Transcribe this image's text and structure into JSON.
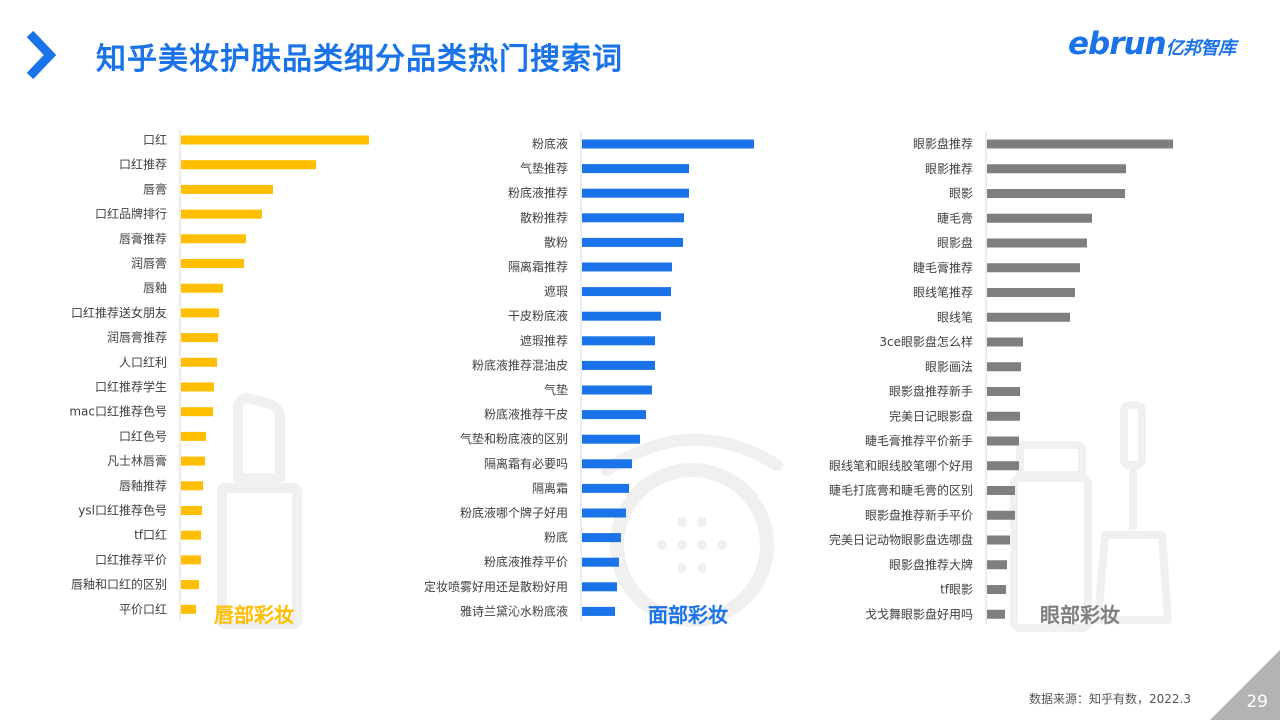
{
  "title": "知乎美妆护肤品类细分品类热门搜索词",
  "logo": {
    "main": "ebrun",
    "sub": "亿邦智库"
  },
  "source": "数据来源：知乎有数，2022.3",
  "page_number": "29",
  "colors": {
    "title": "#1a73e8",
    "lip": "#ffbe00",
    "face": "#1a73e8",
    "eye": "#7f7f7f",
    "watermark": "#f0f0f0"
  },
  "chart_data": [
    {
      "type": "bar",
      "orientation": "horizontal",
      "label": "唇部彩妆",
      "color": "#ffbe00",
      "categories": [
        "口红",
        "口红推荐",
        "唇膏",
        "口红品牌排行",
        "唇膏推荐",
        "润唇膏",
        "唇釉",
        "口红推荐送女朋友",
        "润唇膏推荐",
        "人口红利",
        "口红推荐学生",
        "mac口红推荐色号",
        "口红色号",
        "凡士林唇膏",
        "唇釉推荐",
        "ysl口红推荐色号",
        "tf口红",
        "口红推荐平价",
        "唇釉和口红的区别",
        "平价口红"
      ],
      "values": [
        188,
        135,
        92,
        81,
        65,
        63,
        42,
        38,
        37,
        36,
        33,
        32,
        25,
        24,
        22,
        21,
        20,
        20,
        18,
        15
      ],
      "xlim": [
        0,
        200
      ],
      "icon": "lipstick-watermark"
    },
    {
      "type": "bar",
      "orientation": "horizontal",
      "label": "面部彩妆",
      "color": "#1a73e8",
      "categories": [
        "粉底液",
        "气垫推荐",
        "粉底液推荐",
        "散粉推荐",
        "散粉",
        "隔离霜推荐",
        "遮瑕",
        "干皮粉底液",
        "遮瑕推荐",
        "粉底液推荐混油皮",
        "气垫",
        "粉底液推荐干皮",
        "气垫和粉底液的区别",
        "隔离霜有必要吗",
        "隔离霜",
        "粉底液哪个牌子好用",
        "粉底",
        "粉底液推荐平价",
        "定妆喷雾好用还是散粉好用",
        "雅诗兰黛沁水粉底液"
      ],
      "values": [
        172,
        107,
        107,
        102,
        101,
        90,
        89,
        79,
        73,
        73,
        70,
        64,
        58,
        50,
        47,
        44,
        39,
        37,
        35,
        33
      ],
      "xlim": [
        0,
        200
      ],
      "icon": "compact-powder-watermark"
    },
    {
      "type": "bar",
      "orientation": "horizontal",
      "label": "眼部彩妆",
      "color": "#7f7f7f",
      "categories": [
        "眼影盘推荐",
        "眼影推荐",
        "眼影",
        "睫毛膏",
        "眼影盘",
        "睫毛膏推荐",
        "眼线笔推荐",
        "眼线笔",
        "3ce眼影盘怎么样",
        "眼影画法",
        "眼影盘推荐新手",
        "完美日记眼影盘",
        "睫毛膏推荐平价新手",
        "眼线笔和眼线胶笔哪个好用",
        "睫毛打底膏和睫毛膏的区别",
        "眼影盘推荐新手平价",
        "完美日记动物眼影盘选哪盘",
        "眼影盘推荐大牌",
        "tf眼影",
        "戈戈舞眼影盘好用吗"
      ],
      "values": [
        186,
        139,
        138,
        105,
        100,
        93,
        88,
        83,
        36,
        34,
        33,
        33,
        32,
        32,
        28,
        28,
        23,
        20,
        19,
        18
      ],
      "xlim": [
        0,
        200
      ],
      "icon": "mascara-watermark"
    }
  ]
}
